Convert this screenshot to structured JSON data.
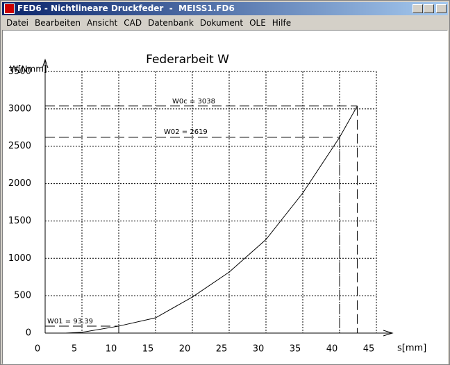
{
  "window": {
    "title": "FED6 - Nichtlineare Druckfeder  -  MEISS1.FD6",
    "menu": [
      "Datei",
      "Bearbeiten",
      "Ansicht",
      "CAD",
      "Datenbank",
      "Dokument",
      "OLE",
      "Hilfe"
    ]
  },
  "chart_data": {
    "type": "line",
    "title": "Federarbeit W",
    "x_label": "s[mm]",
    "y_label": "W[Nmm]",
    "x": [
      2.8,
      5,
      10,
      15,
      20,
      25,
      30,
      35,
      40,
      42.4
    ],
    "series": [
      {
        "name": "W",
        "color": "#000000",
        "values": [
          0,
          10,
          93.39,
          204,
          482,
          816,
          1252,
          1874,
          2619,
          3038
        ]
      }
    ],
    "xlim": [
      0,
      45
    ],
    "ylim": [
      0,
      3500
    ],
    "xticks": [
      0,
      5,
      10,
      15,
      20,
      25,
      30,
      35,
      40,
      45
    ],
    "yticks": [
      0,
      500,
      1000,
      1500,
      2000,
      2500,
      3000,
      3500
    ],
    "grid": true,
    "markers": [
      {
        "label": "W01 = 93.39",
        "x": 10,
        "y": 93.39
      },
      {
        "label": "W02 = 2619",
        "x": 40,
        "y": 2619
      },
      {
        "label": "W0c = 3038",
        "x": 42.4,
        "y": 3038
      }
    ]
  }
}
